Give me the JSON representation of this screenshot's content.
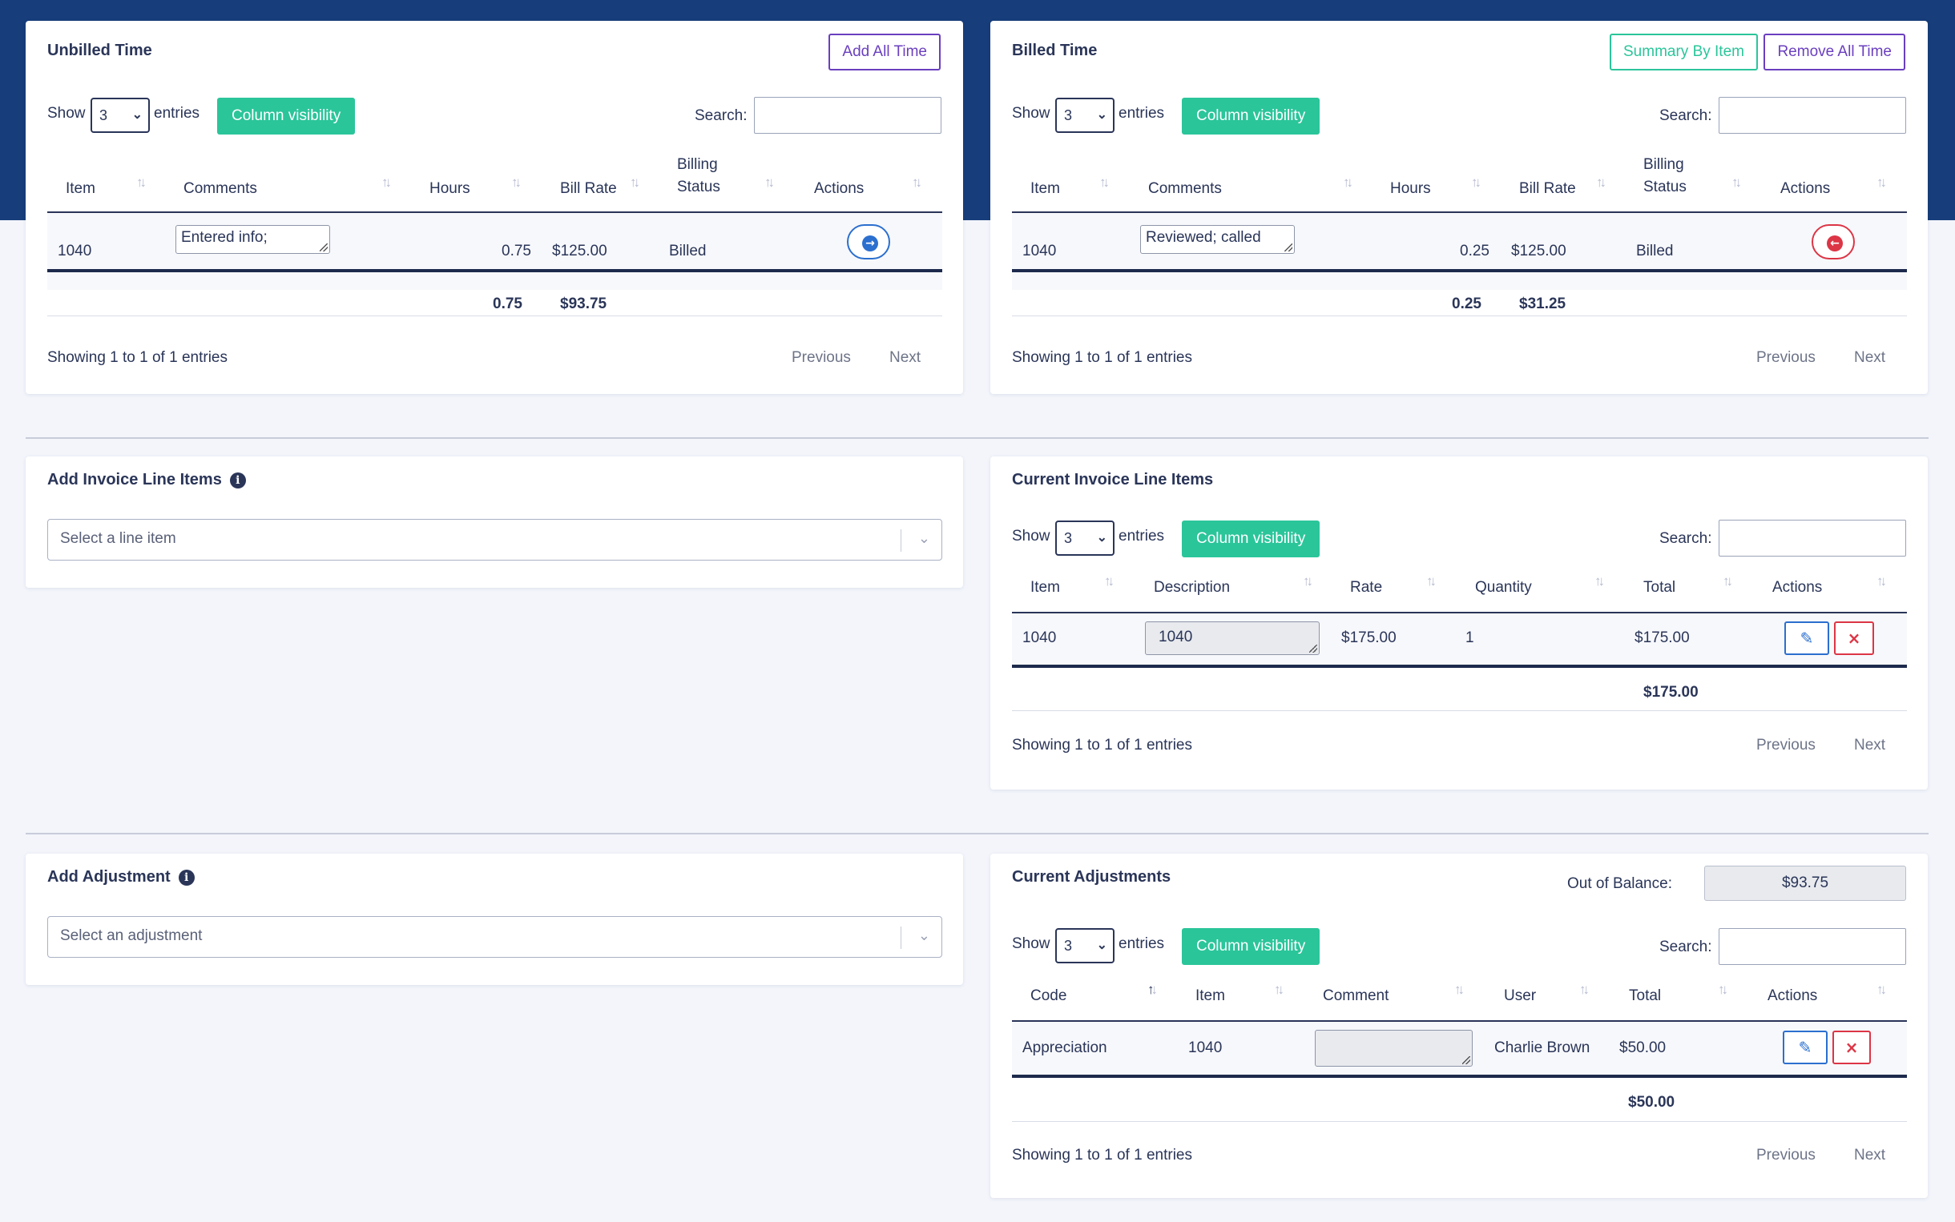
{
  "unbilled": {
    "title": "Unbilled Time",
    "add_all_label": "Add All Time",
    "show_label": "Show",
    "entries_label": "entries",
    "page_size": "3",
    "column_visibility_label": "Column visibility",
    "search_label": "Search:",
    "search_value": "",
    "columns": [
      "Item",
      "Comments",
      "Hours",
      "Bill Rate",
      "Billing Status",
      "Actions"
    ],
    "rows": [
      {
        "item": "1040",
        "comment": "Entered info;",
        "hours": "0.75",
        "rate": "$125.00",
        "status": "Billed"
      }
    ],
    "total_hours": "0.75",
    "total_amount": "$93.75",
    "info": "Showing 1 to 1 of 1 entries",
    "prev_label": "Previous",
    "next_label": "Next"
  },
  "billed": {
    "title": "Billed Time",
    "summary_label": "Summary By Item",
    "remove_all_label": "Remove All Time",
    "show_label": "Show",
    "entries_label": "entries",
    "page_size": "3",
    "column_visibility_label": "Column visibility",
    "search_label": "Search:",
    "search_value": "",
    "columns": [
      "Item",
      "Comments",
      "Hours",
      "Bill Rate",
      "Billing Status",
      "Actions"
    ],
    "rows": [
      {
        "item": "1040",
        "comment": "Reviewed; called",
        "hours": "0.25",
        "rate": "$125.00",
        "status": "Billed"
      }
    ],
    "total_hours": "0.25",
    "total_amount": "$31.25",
    "info": "Showing 1 to 1 of 1 entries",
    "prev_label": "Previous",
    "next_label": "Next"
  },
  "add_line_items": {
    "title": "Add Invoice Line Items",
    "placeholder": "Select a line item"
  },
  "current_line_items": {
    "title": "Current Invoice Line Items",
    "show_label": "Show",
    "entries_label": "entries",
    "page_size": "3",
    "column_visibility_label": "Column visibility",
    "search_label": "Search:",
    "search_value": "",
    "columns": [
      "Item",
      "Description",
      "Rate",
      "Quantity",
      "Total",
      "Actions"
    ],
    "rows": [
      {
        "item": "1040",
        "description": "1040",
        "rate": "$175.00",
        "quantity": "1",
        "total": "$175.00"
      }
    ],
    "grand_total": "$175.00",
    "info": "Showing 1 to 1 of 1 entries",
    "prev_label": "Previous",
    "next_label": "Next"
  },
  "add_adjustment": {
    "title": "Add Adjustment",
    "placeholder": "Select an adjustment"
  },
  "current_adjustments": {
    "title": "Current Adjustments",
    "balance_label": "Out of Balance:",
    "balance_value": "$93.75",
    "show_label": "Show",
    "entries_label": "entries",
    "page_size": "3",
    "column_visibility_label": "Column visibility",
    "search_label": "Search:",
    "search_value": "",
    "columns": [
      "Code",
      "Item",
      "Comment",
      "User",
      "Total",
      "Actions"
    ],
    "rows": [
      {
        "code": "Appreciation",
        "item": "1040",
        "comment": "",
        "user": "Charlie Brown",
        "total": "$50.00"
      }
    ],
    "grand_total": "$50.00",
    "info": "Showing 1 to 1 of 1 entries",
    "prev_label": "Previous",
    "next_label": "Next"
  },
  "colors": {
    "header_band": "#173d7a",
    "accent_green": "#2bc59a",
    "accent_purple": "#6a3fbf",
    "action_blue": "#2b6fcf",
    "action_red": "#dc3545"
  },
  "icons": {
    "info": "info-circle-icon",
    "sort": "sort-arrows-icon",
    "move_right": "arrow-circle-right-icon",
    "move_left": "arrow-circle-left-icon",
    "edit": "edit-icon",
    "delete": "close-icon",
    "chevron": "chevron-down-icon"
  }
}
